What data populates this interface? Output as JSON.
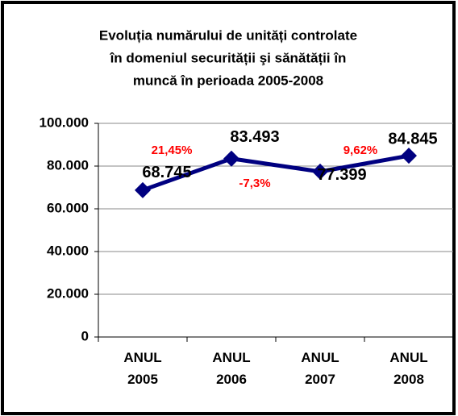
{
  "chart_data": {
    "type": "line",
    "title": [
      "Evoluția numărului de unități controlate",
      "în domeniul securității şi sănătății în",
      "muncă în perioada 2005-2008"
    ],
    "categories": [
      "ANUL 2005",
      "ANUL 2006",
      "ANUL 2007",
      "ANUL 2008"
    ],
    "series": [
      {
        "name": "unități controlate",
        "color": "#000080",
        "values": [
          68745,
          83493,
          77399,
          84845
        ],
        "value_labels": [
          "68.745",
          "83.493",
          "77.399",
          "84.845"
        ]
      }
    ],
    "annotations": [
      "21,45%",
      "-7,3%",
      "9,62%"
    ],
    "annotation_color": "#ff0000",
    "ylim": [
      0,
      100000
    ],
    "yticks": [
      0,
      {
        "value": 20000,
        "label": "20.000"
      },
      {
        "value": 40000,
        "label": "40.000"
      },
      {
        "value": 60000,
        "label": "60.000"
      },
      {
        "value": 80000,
        "label": "80.000"
      },
      {
        "value": 100000,
        "label": "100.000"
      }
    ],
    "grid": true
  }
}
